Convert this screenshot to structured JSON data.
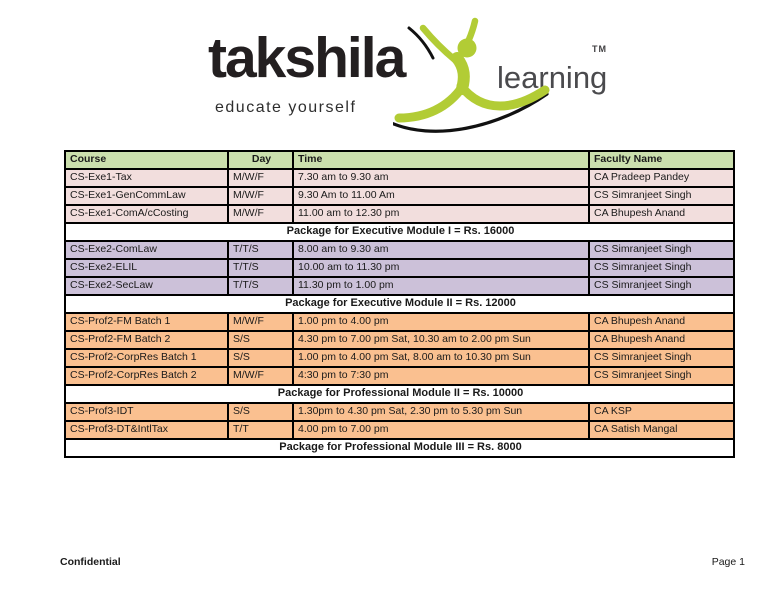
{
  "logo": {
    "wordmark": "takshila",
    "tagline": "educate yourself",
    "suffix": "learning",
    "tm": "TM"
  },
  "colors": {
    "header_green": "#cbdfad",
    "row_pink": "#f2dedd",
    "row_purple": "#ccc1d9",
    "row_orange": "#fac090",
    "brand_green": "#b2cc35",
    "learning_gray": "#4a4a4d"
  },
  "table": {
    "headers": [
      "Course",
      "Day",
      "Time",
      "Faculty Name"
    ],
    "rows": [
      {
        "type": "data",
        "theme": "pink",
        "course": "CS-Exe1-Tax",
        "day": "M/W/F",
        "time": "7.30 am to 9.30 am",
        "faculty": "CA Pradeep Pandey"
      },
      {
        "type": "data",
        "theme": "pink",
        "course": "CS-Exe1-GenCommLaw",
        "day": "M/W/F",
        "time": "9.30 Am to 11.00 Am",
        "faculty": "CS Simranjeet Singh"
      },
      {
        "type": "data",
        "theme": "pink",
        "course": "CS-Exe1-ComA/cCosting",
        "day": "M/W/F",
        "time": "11.00 am to 12.30 pm",
        "faculty": "CA Bhupesh Anand"
      },
      {
        "type": "package",
        "label": "Package for Executive Module I = Rs. 16000"
      },
      {
        "type": "data",
        "theme": "purple",
        "course": "CS-Exe2-ComLaw",
        "day": "T/T/S",
        "time": "8.00 am to 9.30 am",
        "faculty": "CS Simranjeet Singh"
      },
      {
        "type": "data",
        "theme": "purple",
        "course": "CS-Exe2-ELIL",
        "day": "T/T/S",
        "time": "10.00 am to 11.30 pm",
        "faculty": "CS Simranjeet Singh"
      },
      {
        "type": "data",
        "theme": "purple",
        "course": "CS-Exe2-SecLaw",
        "day": "T/T/S",
        "time": "11.30 pm to 1.00 pm",
        "faculty": "CS Simranjeet Singh"
      },
      {
        "type": "package",
        "label": "Package for Executive Module II = Rs. 12000"
      },
      {
        "type": "data",
        "theme": "orange",
        "course": "CS-Prof2-FM Batch 1",
        "day": "M/W/F",
        "time": "1.00 pm to 4.00 pm",
        "faculty": "CA Bhupesh Anand"
      },
      {
        "type": "data",
        "theme": "orange",
        "course": "CS-Prof2-FM Batch 2",
        "day": "S/S",
        "time": "4.30 pm to 7.00 pm Sat, 10.30 am to 2.00 pm Sun",
        "faculty": "CA Bhupesh Anand"
      },
      {
        "type": "data",
        "theme": "orange",
        "course": "CS-Prof2-CorpRes Batch 1",
        "day": "S/S",
        "time": "1.00 pm to 4.00 pm Sat, 8.00 am to 10.30 pm Sun",
        "faculty": "CS Simranjeet Singh"
      },
      {
        "type": "data",
        "theme": "orange",
        "course": "CS-Prof2-CorpRes Batch 2",
        "day": "M/W/F",
        "time": "4:30 pm to 7:30 pm",
        "faculty": "CS Simranjeet Singh"
      },
      {
        "type": "package",
        "label": "Package for Professional Module II = Rs. 10000"
      },
      {
        "type": "data",
        "theme": "orange",
        "course": "CS-Prof3-IDT",
        "day": "S/S",
        "time": "1.30pm to 4.30 pm Sat, 2.30 pm to 5.30 pm Sun",
        "faculty": "CA KSP"
      },
      {
        "type": "data",
        "theme": "orange",
        "course": "CS-Prof3-DT&IntlTax",
        "day": "T/T",
        "time": "4.00 pm to 7.00 pm",
        "faculty": "CA Satish Mangal"
      },
      {
        "type": "package",
        "label": "Package for Professional Module III = Rs. 8000"
      }
    ]
  },
  "footer": {
    "left": "Confidential",
    "right": "Page 1"
  }
}
